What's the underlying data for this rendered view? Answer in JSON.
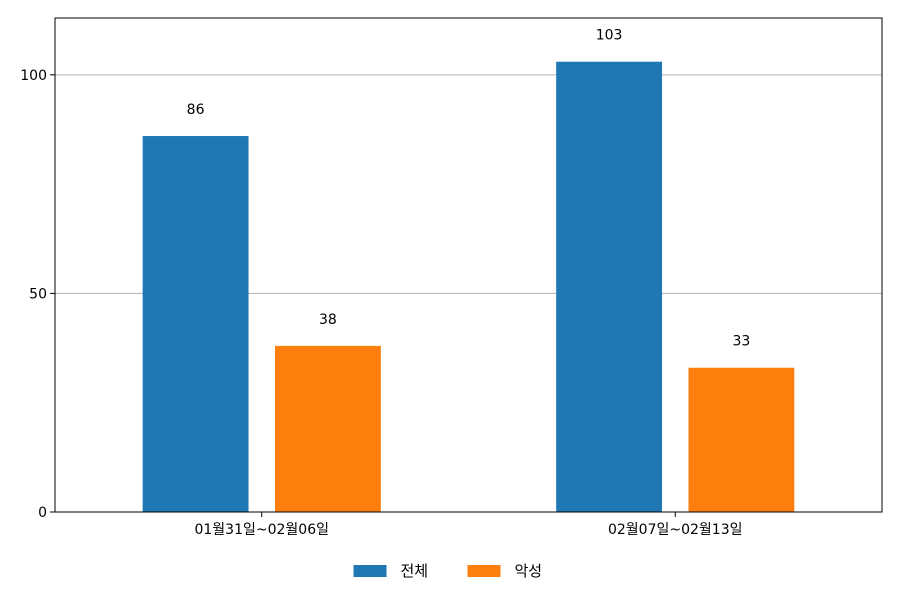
{
  "chart_data": {
    "type": "bar",
    "title": "",
    "xlabel": "",
    "ylabel": "",
    "categories": [
      "01월31일~02월06일",
      "02월07일~02월13일"
    ],
    "series": [
      {
        "name": "전체",
        "values": [
          86,
          103
        ],
        "color": "#1f77b4"
      },
      {
        "name": "악성",
        "values": [
          38,
          33
        ],
        "color": "#ff7f0e"
      }
    ],
    "ylim": [
      0,
      113
    ],
    "yticks": [
      0,
      50,
      100
    ],
    "grid": "horizontal",
    "legend_position": "bottom-center",
    "data_labels": true
  }
}
